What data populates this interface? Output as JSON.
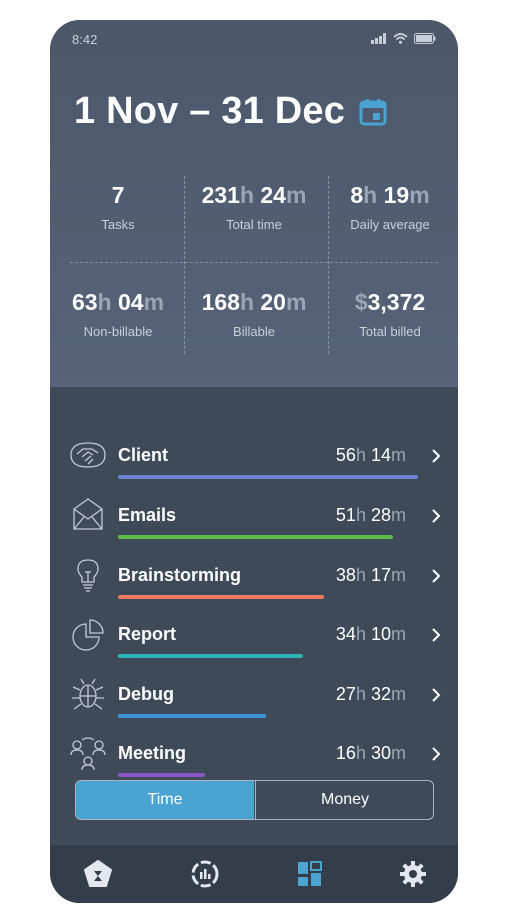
{
  "status_bar": {
    "time": "8:42"
  },
  "header": {
    "date_range": "1 Nov – 31 Dec"
  },
  "stats": [
    {
      "parts": [
        {
          "t": "7",
          "unit": false
        }
      ],
      "label": "Tasks"
    },
    {
      "parts": [
        {
          "t": "231",
          "unit": false
        },
        {
          "t": "h",
          "unit": true
        },
        {
          "t": " 24",
          "unit": false
        },
        {
          "t": "m",
          "unit": true
        }
      ],
      "label": "Total time"
    },
    {
      "parts": [
        {
          "t": "8",
          "unit": false
        },
        {
          "t": "h",
          "unit": true
        },
        {
          "t": " 19",
          "unit": false
        },
        {
          "t": "m",
          "unit": true
        }
      ],
      "label": "Daily average"
    },
    {
      "parts": [
        {
          "t": "63",
          "unit": false
        },
        {
          "t": "h",
          "unit": true
        },
        {
          "t": " 04",
          "unit": false
        },
        {
          "t": "m",
          "unit": true
        }
      ],
      "label": "Non-billable"
    },
    {
      "parts": [
        {
          "t": "168",
          "unit": false
        },
        {
          "t": "h",
          "unit": true
        },
        {
          "t": " 20",
          "unit": false
        },
        {
          "t": "m",
          "unit": true
        }
      ],
      "label": "Billable"
    },
    {
      "parts": [
        {
          "t": "$",
          "unit": true
        },
        {
          "t": "3,372",
          "unit": false
        }
      ],
      "label": "Total billed"
    }
  ],
  "categories": [
    {
      "name": "Client",
      "hours": "56",
      "minutes": "14",
      "color": "#6c86d6",
      "fill": 0.83,
      "icon": "handshake-icon"
    },
    {
      "name": "Emails",
      "hours": "51",
      "minutes": "28",
      "color": "#5dbb46",
      "fill": 0.76,
      "icon": "envelope-icon"
    },
    {
      "name": "Brainstorming",
      "hours": "38",
      "minutes": "17",
      "color": "#f07a62",
      "fill": 0.57,
      "icon": "lightbulb-icon"
    },
    {
      "name": "Report",
      "hours": "34",
      "minutes": "10",
      "color": "#2fb3b8",
      "fill": 0.51,
      "icon": "pie-chart-icon"
    },
    {
      "name": "Debug",
      "hours": "27",
      "minutes": "32",
      "color": "#3b93d6",
      "fill": 0.41,
      "icon": "bug-icon"
    },
    {
      "name": "Meeting",
      "hours": "16",
      "minutes": "30",
      "color": "#8a55c6",
      "fill": 0.24,
      "icon": "people-icon"
    }
  ],
  "units": {
    "h": "h",
    "m": "m"
  },
  "toggle": {
    "time": "Time",
    "money": "Money",
    "selected": "Time"
  },
  "nav": [
    {
      "icon": "hourglass-pentagon-icon"
    },
    {
      "icon": "report-circle-icon"
    },
    {
      "icon": "dashboard-grid-icon",
      "active": true
    },
    {
      "icon": "gear-icon"
    }
  ],
  "colors": {
    "accent": "#4aa3d0"
  }
}
